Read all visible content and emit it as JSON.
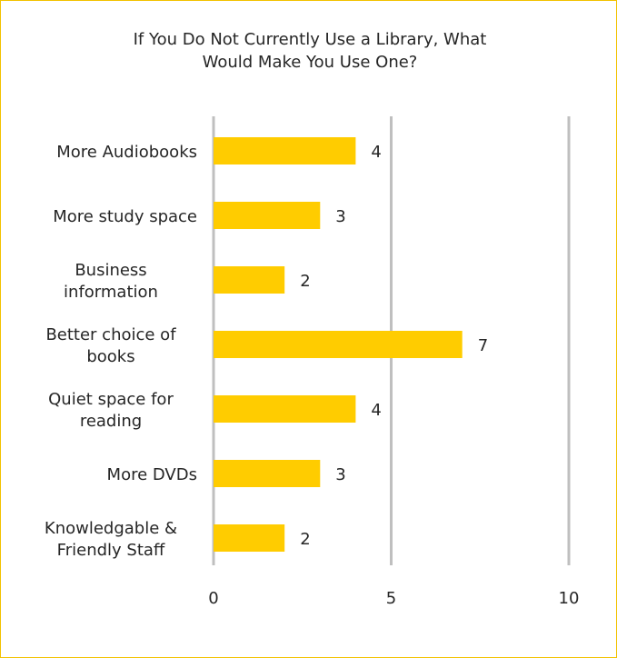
{
  "chart_data": {
    "type": "bar",
    "orientation": "horizontal",
    "title_lines": [
      "If You Do Not Currently Use a Library, What",
      "Would Make You Use One?"
    ],
    "categories": [
      [
        "More Audiobooks"
      ],
      [
        "More study space"
      ],
      [
        "Business",
        "information"
      ],
      [
        "Better choice of",
        "books"
      ],
      [
        "Quiet space for",
        "reading"
      ],
      [
        "More DVDs"
      ],
      [
        "Knowledgable &",
        "Friendly Staff"
      ]
    ],
    "values": [
      4,
      3,
      2,
      7,
      4,
      3,
      2
    ],
    "xlim": [
      0,
      10
    ],
    "xticks": [
      0,
      5,
      10
    ],
    "tick_labels": [
      "0",
      "5",
      "10"
    ],
    "grid": true,
    "colors": {
      "bar": "#ffcc00",
      "grid": "#bfbfbf",
      "border": "#f2c200"
    }
  }
}
